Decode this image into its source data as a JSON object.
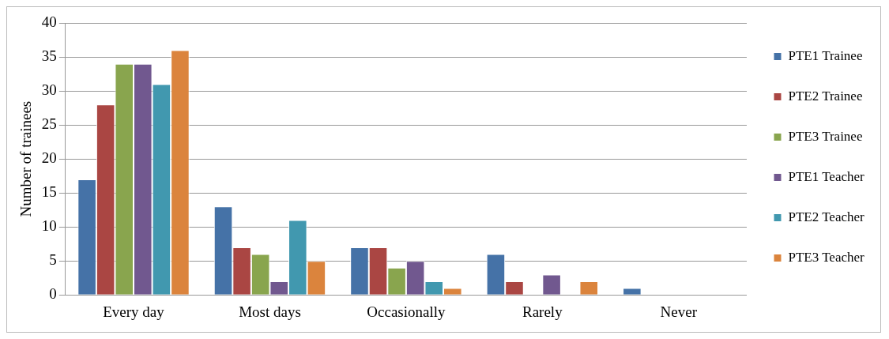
{
  "chart_data": {
    "type": "bar",
    "ylabel": "Number of trainees",
    "categories": [
      "Every day",
      "Most days",
      "Occasionally",
      "Rarely",
      "Never"
    ],
    "series": [
      {
        "name": "PTE1 Trainee",
        "color": "#4572a7",
        "values": [
          17,
          13,
          7,
          6,
          1
        ]
      },
      {
        "name": "PTE2 Trainee",
        "color": "#aa4643",
        "values": [
          28,
          7,
          7,
          2,
          0
        ]
      },
      {
        "name": "PTE3 Trainee",
        "color": "#89a54e",
        "values": [
          34,
          6,
          4,
          0,
          0
        ]
      },
      {
        "name": "PTE1 Teacher",
        "color": "#71588f",
        "values": [
          34,
          2,
          5,
          3,
          0
        ]
      },
      {
        "name": "PTE2 Teacher",
        "color": "#4198af",
        "values": [
          31,
          11,
          2,
          0,
          0
        ]
      },
      {
        "name": "PTE3 Teacher",
        "color": "#db843d",
        "values": [
          36,
          5,
          1,
          2,
          0
        ]
      }
    ],
    "ylim": [
      0,
      40
    ],
    "yticks": [
      0,
      5,
      10,
      15,
      20,
      25,
      30,
      35,
      40
    ],
    "grid": "y",
    "legend": "right"
  }
}
